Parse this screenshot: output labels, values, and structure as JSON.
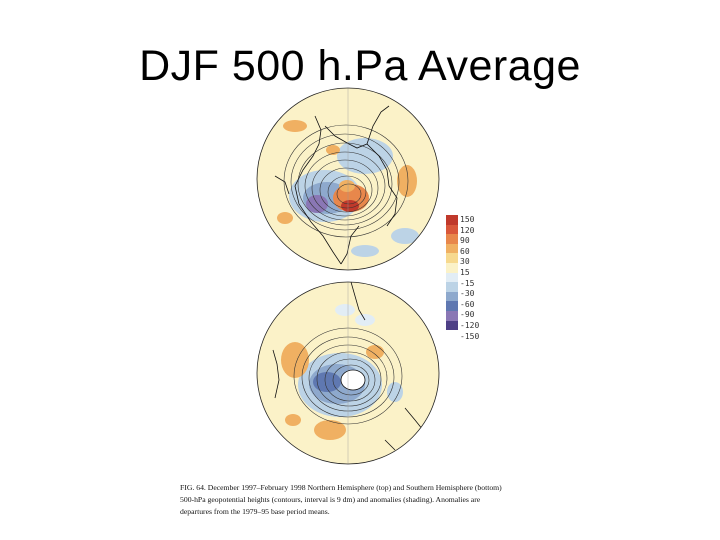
{
  "slide": {
    "title": "DJF 500 h.Pa Average"
  },
  "colorbar": {
    "labels": [
      "150",
      "120",
      "90",
      "60",
      "30",
      "15",
      "-15",
      "-30",
      "-60",
      "-90",
      "-120",
      "-150"
    ],
    "colors": [
      "#c0392b",
      "#d9573a",
      "#e8874b",
      "#f0b062",
      "#f7d98e",
      "#fbf2c8",
      "#e2edf5",
      "#bcd3e6",
      "#8ea9cd",
      "#5f78b1",
      "#8a77b5",
      "#4e3f86"
    ]
  },
  "figure": {
    "caption": "FIG. 64. December 1997–February 1998 Northern Hemisphere (top) and Southern Hemisphere (bottom) 500-hPa geopotential heights (contours, interval is 9 dm) and anomalies (shading). Anomalies are departures from the 1979–95 base period means."
  },
  "icons": {
    "north": "northern-hemisphere-map-icon",
    "south": "southern-hemisphere-map-icon"
  }
}
